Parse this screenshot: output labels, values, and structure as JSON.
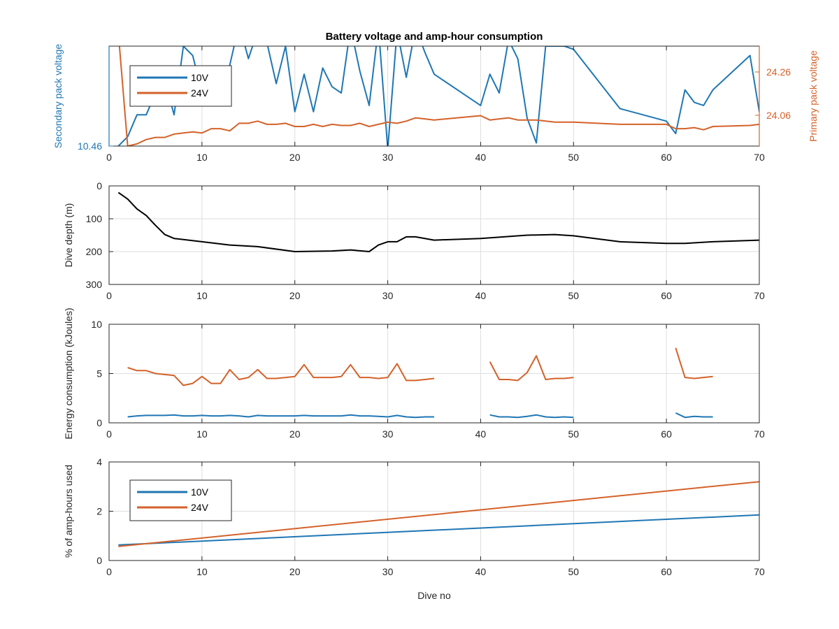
{
  "title": "Battery voltage and amp-hour consumption",
  "xlabel": "Dive no",
  "colors": {
    "blue": "#1f77b4",
    "orange": "#d4622a",
    "black": "#000000",
    "axis": "#262626",
    "grid": "#dedede"
  },
  "chart_data": [
    {
      "type": "line",
      "id": "voltage",
      "title": "Battery voltage and amp-hour consumption",
      "xlim": [
        0,
        70
      ],
      "xticks": [
        0,
        10,
        20,
        30,
        40,
        50,
        60,
        70
      ],
      "left_axis": {
        "label": "Secondary pack voltage",
        "ticks": [
          "10.46"
        ],
        "color": "#1f77b4"
      },
      "right_axis": {
        "label": "Primary pack voltage",
        "ticks": [
          "24.26",
          "24.06"
        ],
        "color": "#d4622a"
      },
      "legend": {
        "position": "top-left",
        "entries": [
          "10V",
          "24V"
        ]
      },
      "series": [
        {
          "name": "10V",
          "axis": "left",
          "color": "#1f77b4",
          "x": [
            1,
            2,
            3,
            4,
            5,
            6,
            7,
            8,
            9,
            10,
            11,
            12,
            13,
            14,
            15,
            16,
            17,
            18,
            19,
            20,
            21,
            22,
            23,
            24,
            25,
            26,
            27,
            28,
            29,
            30,
            31,
            32,
            33,
            34,
            35,
            40,
            41,
            42,
            43,
            44,
            45,
            46,
            47,
            48,
            49,
            50,
            55,
            60,
            61,
            62,
            63,
            64,
            65,
            69,
            70
          ],
          "y": [
            10.46,
            10.475,
            10.51,
            10.51,
            10.545,
            10.565,
            10.51,
            10.62,
            10.605,
            10.545,
            10.525,
            10.535,
            10.59,
            10.655,
            10.6,
            10.645,
            10.625,
            10.56,
            10.62,
            10.515,
            10.575,
            10.515,
            10.585,
            10.555,
            10.545,
            10.65,
            10.58,
            10.525,
            10.65,
            10.455,
            10.645,
            10.57,
            10.65,
            10.61,
            10.575,
            10.525,
            10.575,
            10.545,
            10.63,
            10.6,
            10.505,
            10.465,
            10.62,
            10.62,
            10.62,
            10.615,
            10.52,
            10.5,
            10.48,
            10.55,
            10.53,
            10.525,
            10.55,
            10.605,
            10.515
          ],
          "display_range": [
            10.46,
            10.62
          ]
        },
        {
          "name": "24V",
          "axis": "right",
          "color": "#d4622a",
          "x": [
            1,
            2,
            3,
            4,
            5,
            6,
            7,
            8,
            9,
            10,
            11,
            12,
            13,
            14,
            15,
            16,
            17,
            18,
            19,
            20,
            21,
            22,
            23,
            24,
            25,
            26,
            27,
            28,
            29,
            30,
            31,
            32,
            33,
            34,
            35,
            40,
            41,
            42,
            43,
            44,
            45,
            46,
            47,
            48,
            49,
            50,
            55,
            60,
            61,
            62,
            63,
            64,
            65,
            69,
            70
          ],
          "y": [
            24.5,
            23.98,
            23.99,
            24.01,
            24.02,
            24.02,
            24.035,
            24.04,
            24.045,
            24.04,
            24.06,
            24.06,
            24.05,
            24.085,
            24.085,
            24.095,
            24.08,
            24.08,
            24.085,
            24.07,
            24.07,
            24.08,
            24.07,
            24.08,
            24.075,
            24.075,
            24.085,
            24.07,
            24.08,
            24.09,
            24.085,
            24.095,
            24.11,
            24.105,
            24.1,
            24.12,
            24.1,
            24.105,
            24.11,
            24.1,
            24.1,
            24.1,
            24.095,
            24.09,
            24.09,
            24.09,
            24.08,
            24.08,
            24.06,
            24.06,
            24.065,
            24.055,
            24.07,
            24.075,
            24.08
          ],
          "display_range": [
            23.98,
            24.44
          ]
        }
      ]
    },
    {
      "type": "line",
      "id": "depth",
      "ylabel": "Dive depth (m)",
      "xlim": [
        0,
        70
      ],
      "ylim": [
        0,
        300
      ],
      "y_reversed": true,
      "xticks": [
        0,
        10,
        20,
        30,
        40,
        50,
        60,
        70
      ],
      "yticks": [
        0,
        100,
        200,
        300
      ],
      "series": [
        {
          "color": "#000000",
          "x": [
            1,
            2,
            3,
            4,
            5,
            6,
            7,
            10,
            13,
            16,
            20,
            24,
            26,
            28,
            29,
            30,
            31,
            32,
            33,
            35,
            40,
            45,
            48,
            50,
            55,
            60,
            62,
            65,
            70
          ],
          "y": [
            20,
            40,
            70,
            90,
            120,
            148,
            160,
            170,
            180,
            185,
            200,
            198,
            195,
            200,
            180,
            170,
            170,
            155,
            155,
            165,
            160,
            150,
            148,
            152,
            170,
            175,
            175,
            170,
            165
          ]
        }
      ]
    },
    {
      "type": "line",
      "id": "energy",
      "ylabel": "Energy consumption (kJoules)",
      "xlim": [
        0,
        70
      ],
      "ylim": [
        0,
        10
      ],
      "xticks": [
        0,
        10,
        20,
        30,
        40,
        50,
        60,
        70
      ],
      "yticks": [
        0,
        5,
        10
      ],
      "series": [
        {
          "color": "#d4622a",
          "segments": [
            {
              "x": [
                2,
                3,
                4,
                5,
                6,
                7,
                8,
                9,
                10,
                11,
                12,
                13,
                14,
                15,
                16,
                17,
                18,
                19,
                20,
                21,
                22,
                23,
                24,
                25,
                26,
                27,
                28,
                29,
                30,
                31,
                32,
                33,
                34,
                35
              ],
              "y": [
                5.6,
                5.3,
                5.3,
                5,
                4.9,
                4.8,
                3.8,
                4,
                4.7,
                4,
                4,
                5.4,
                4.4,
                4.6,
                5.4,
                4.5,
                4.5,
                4.6,
                4.7,
                5.9,
                4.6,
                4.6,
                4.6,
                4.7,
                5.9,
                4.6,
                4.6,
                4.5,
                4.6,
                6,
                4.3,
                4.3,
                4.4,
                4.5
              ]
            },
            {
              "x": [
                41,
                42,
                43,
                44,
                45,
                46,
                47,
                48,
                49,
                50
              ],
              "y": [
                6.2,
                4.4,
                4.4,
                4.3,
                5.1,
                6.8,
                4.4,
                4.5,
                4.5,
                4.6
              ]
            },
            {
              "x": [
                61,
                62,
                63,
                64,
                65
              ],
              "y": [
                7.6,
                4.6,
                4.5,
                4.6,
                4.7
              ]
            }
          ]
        },
        {
          "color": "#1f77b4",
          "segments": [
            {
              "x": [
                2,
                3,
                4,
                5,
                6,
                7,
                8,
                9,
                10,
                11,
                12,
                13,
                14,
                15,
                16,
                17,
                18,
                19,
                20,
                21,
                22,
                23,
                24,
                25,
                26,
                27,
                28,
                29,
                30,
                31,
                32,
                33,
                34,
                35
              ],
              "y": [
                0.6,
                0.7,
                0.75,
                0.75,
                0.75,
                0.8,
                0.7,
                0.7,
                0.75,
                0.7,
                0.7,
                0.75,
                0.7,
                0.6,
                0.75,
                0.7,
                0.7,
                0.7,
                0.7,
                0.75,
                0.7,
                0.7,
                0.7,
                0.7,
                0.8,
                0.7,
                0.7,
                0.65,
                0.6,
                0.75,
                0.6,
                0.55,
                0.6,
                0.6
              ]
            },
            {
              "x": [
                41,
                42,
                43,
                44,
                45,
                46,
                47,
                48,
                49,
                50
              ],
              "y": [
                0.8,
                0.6,
                0.6,
                0.55,
                0.65,
                0.8,
                0.6,
                0.55,
                0.6,
                0.55
              ]
            },
            {
              "x": [
                61,
                62,
                63,
                64,
                65
              ],
              "y": [
                1,
                0.55,
                0.65,
                0.6,
                0.6
              ]
            }
          ]
        }
      ]
    },
    {
      "type": "line",
      "id": "amp_hours",
      "ylabel": "% of amp-hours used",
      "xlabel": "Dive no",
      "xlim": [
        0,
        70
      ],
      "ylim": [
        0,
        4
      ],
      "xticks": [
        0,
        10,
        20,
        30,
        40,
        50,
        60,
        70
      ],
      "yticks": [
        0,
        2,
        4
      ],
      "legend": {
        "position": "top-left",
        "entries": [
          "10V",
          "24V"
        ]
      },
      "series": [
        {
          "name": "10V",
          "color": "#1f77b4",
          "x": [
            1,
            70
          ],
          "y": [
            0.63,
            1.85
          ]
        },
        {
          "name": "24V",
          "color": "#d4622a",
          "x": [
            1,
            70
          ],
          "y": [
            0.57,
            3.2
          ]
        }
      ]
    }
  ]
}
